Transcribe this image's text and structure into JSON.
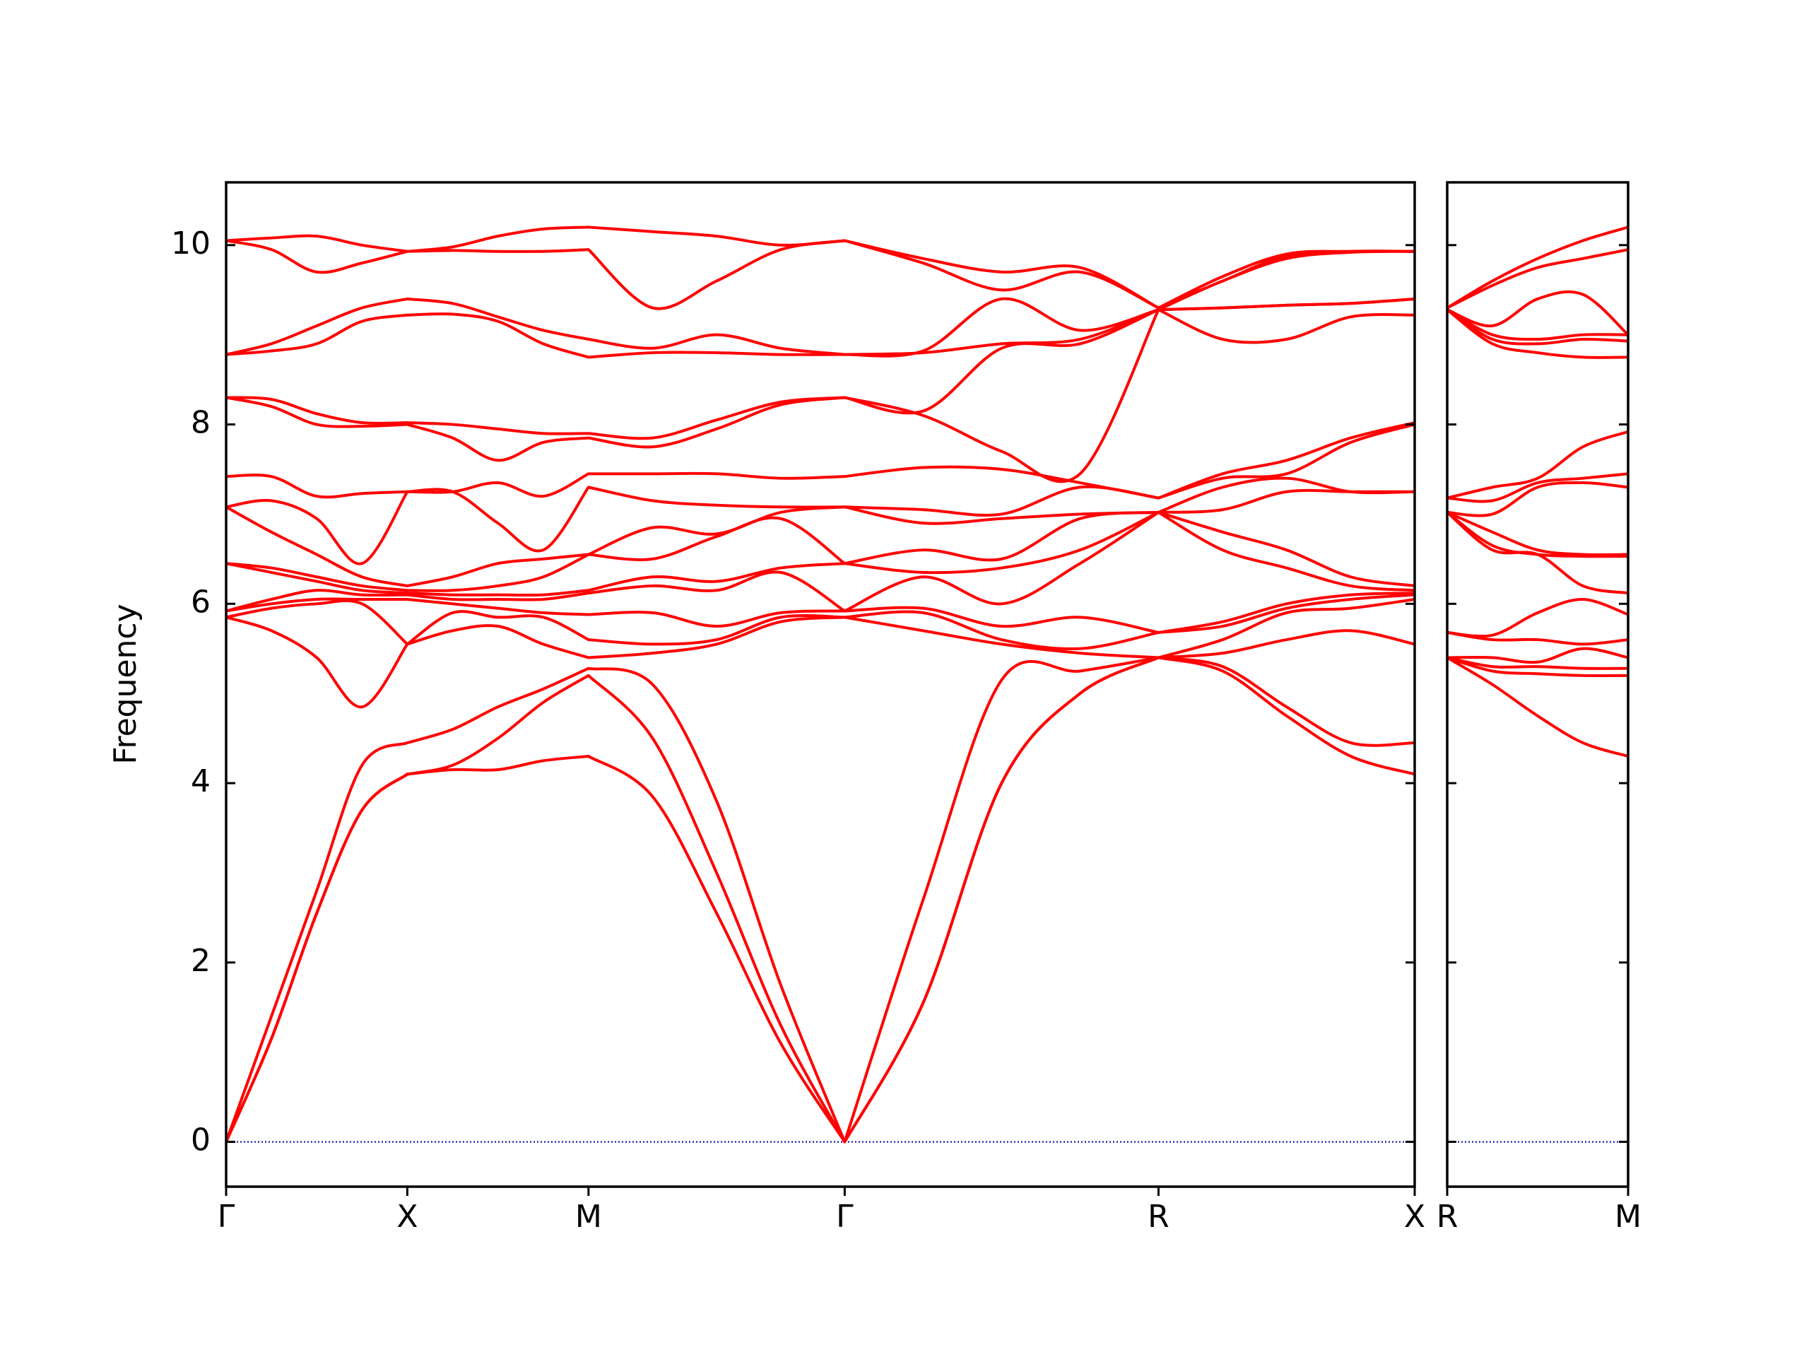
{
  "chart_data": [
    {
      "type": "line",
      "ylabel": "Frequency",
      "color": "#ff0000",
      "hline": 0,
      "hline_color": "#0000aa",
      "x": [
        0,
        0.25,
        0.5,
        0.75,
        1,
        1.25,
        1.5,
        1.75,
        2,
        2.354,
        2.707,
        3.061,
        3.414,
        3.847,
        4.28,
        4.713,
        5.146,
        5.5,
        5.853,
        6.207,
        6.56
      ],
      "xlim": [
        0,
        6.56
      ],
      "xticks": [
        {
          "value": 0,
          "label": "Γ"
        },
        {
          "value": 1,
          "label": "X"
        },
        {
          "value": 2,
          "label": "M"
        },
        {
          "value": 3.414,
          "label": "Γ"
        },
        {
          "value": 5.146,
          "label": "R"
        },
        {
          "value": 6.56,
          "label": "X"
        }
      ],
      "ylim": [
        -0.5,
        10.7
      ],
      "yticks": [
        0,
        2,
        4,
        6,
        8,
        10
      ],
      "show_ytick_labels": true,
      "series": [
        {
          "values": [
            0,
            1.15,
            2.55,
            3.7,
            4.1,
            4.15,
            4.15,
            4.25,
            4.3,
            3.85,
            2.55,
            1.1,
            0,
            1.55,
            4.0,
            5.0,
            5.4,
            5.25,
            4.75,
            4.3,
            4.1
          ]
        },
        {
          "values": [
            0,
            1.15,
            2.55,
            3.7,
            4.1,
            4.2,
            4.5,
            4.9,
            5.2,
            4.5,
            3.0,
            1.3,
            0,
            1.55,
            4.0,
            5.0,
            5.4,
            5.3,
            4.85,
            4.45,
            4.45
          ]
        },
        {
          "values": [
            0,
            1.4,
            2.8,
            4.2,
            4.45,
            4.6,
            4.85,
            5.05,
            5.28,
            5.1,
            3.8,
            1.75,
            0,
            2.7,
            5.15,
            5.25,
            5.4,
            5.45,
            5.6,
            5.7,
            5.55
          ]
        },
        {
          "values": [
            5.85,
            5.7,
            5.4,
            4.85,
            5.55,
            5.7,
            5.75,
            5.55,
            5.4,
            5.45,
            5.55,
            5.8,
            5.85,
            5.7,
            5.55,
            5.45,
            5.4,
            5.6,
            5.9,
            5.95,
            6.05
          ]
        },
        {
          "values": [
            5.85,
            5.95,
            6.0,
            6.0,
            5.55,
            5.9,
            5.85,
            5.85,
            5.6,
            5.55,
            5.6,
            5.85,
            5.85,
            5.9,
            5.6,
            5.5,
            5.68,
            5.75,
            5.95,
            6.05,
            6.1
          ]
        },
        {
          "values": [
            5.92,
            6.0,
            6.05,
            6.05,
            6.05,
            6.0,
            5.95,
            5.9,
            5.88,
            5.9,
            5.75,
            5.9,
            5.92,
            5.95,
            5.75,
            5.85,
            5.68,
            5.8,
            6.0,
            6.1,
            6.12
          ]
        },
        {
          "values": [
            5.92,
            6.05,
            6.15,
            6.1,
            6.1,
            6.05,
            6.05,
            6.05,
            6.12,
            6.2,
            6.15,
            6.35,
            5.92,
            6.3,
            6.0,
            6.45,
            7.02,
            6.6,
            6.4,
            6.2,
            6.15
          ]
        },
        {
          "values": [
            6.45,
            6.35,
            6.25,
            6.15,
            6.12,
            6.1,
            6.1,
            6.1,
            6.15,
            6.3,
            6.25,
            6.4,
            6.45,
            6.35,
            6.4,
            6.6,
            7.02,
            6.8,
            6.6,
            6.3,
            6.2
          ]
        },
        {
          "values": [
            6.45,
            6.4,
            6.3,
            6.2,
            6.15,
            6.15,
            6.2,
            6.3,
            6.55,
            6.5,
            6.75,
            6.95,
            6.45,
            6.6,
            6.5,
            6.95,
            7.02,
            7.05,
            7.25,
            7.25,
            7.25
          ]
        },
        {
          "values": [
            7.08,
            6.8,
            6.55,
            6.3,
            6.2,
            6.3,
            6.45,
            6.5,
            6.55,
            6.85,
            6.78,
            7.02,
            7.08,
            6.9,
            6.95,
            7.0,
            7.02,
            7.3,
            7.4,
            7.25,
            7.25
          ]
        },
        {
          "values": [
            7.08,
            7.15,
            6.95,
            6.45,
            7.25,
            7.25,
            6.9,
            6.6,
            7.3,
            7.15,
            7.1,
            7.08,
            7.08,
            7.05,
            7.0,
            7.3,
            7.18,
            7.4,
            7.45,
            7.8,
            8.0
          ]
        },
        {
          "values": [
            7.42,
            7.42,
            7.2,
            7.23,
            7.25,
            7.25,
            7.35,
            7.2,
            7.45,
            7.45,
            7.45,
            7.4,
            7.42,
            7.52,
            7.5,
            7.35,
            7.18,
            7.45,
            7.6,
            7.85,
            8.02
          ]
        },
        {
          "values": [
            8.3,
            8.2,
            8.0,
            7.98,
            8.0,
            7.85,
            7.6,
            7.8,
            7.85,
            7.75,
            7.95,
            8.22,
            8.3,
            8.1,
            7.7,
            7.45,
            9.28,
            8.95,
            8.95,
            9.2,
            9.22
          ]
        },
        {
          "values": [
            8.3,
            8.28,
            8.12,
            8.02,
            8.02,
            8.0,
            7.95,
            7.9,
            7.9,
            7.85,
            8.05,
            8.25,
            8.3,
            8.15,
            8.85,
            8.9,
            9.28,
            9.3,
            9.33,
            9.35,
            9.4
          ]
        },
        {
          "values": [
            8.78,
            8.82,
            8.9,
            9.15,
            9.22,
            9.23,
            9.15,
            8.9,
            8.75,
            8.8,
            8.8,
            8.78,
            8.78,
            8.8,
            8.9,
            8.95,
            9.28,
            9.3,
            9.33,
            9.35,
            9.4
          ]
        },
        {
          "values": [
            8.78,
            8.9,
            9.1,
            9.3,
            9.4,
            9.35,
            9.2,
            9.05,
            8.95,
            8.85,
            9.0,
            8.85,
            8.78,
            8.82,
            9.4,
            9.05,
            9.28,
            9.6,
            9.85,
            9.92,
            9.93
          ]
        },
        {
          "values": [
            10.05,
            9.95,
            9.7,
            9.8,
            9.93,
            9.94,
            9.93,
            9.93,
            9.95,
            9.3,
            9.6,
            9.95,
            10.05,
            9.8,
            9.5,
            9.7,
            9.3,
            9.6,
            9.88,
            9.93,
            9.93
          ]
        },
        {
          "values": [
            10.05,
            10.08,
            10.1,
            10.0,
            9.93,
            9.98,
            10.1,
            10.18,
            10.2,
            10.15,
            10.1,
            10.0,
            10.05,
            9.85,
            9.7,
            9.75,
            9.3,
            9.65,
            9.9,
            9.93,
            9.93
          ]
        }
      ]
    },
    {
      "type": "line",
      "color": "#ff0000",
      "hline": 0,
      "hline_color": "#0000aa",
      "x": [
        0,
        0.25,
        0.5,
        0.75,
        1
      ],
      "xlim": [
        0,
        1
      ],
      "xticks": [
        {
          "value": 0,
          "label": "R"
        },
        {
          "value": 1,
          "label": "M"
        }
      ],
      "ylim": [
        -0.5,
        10.7
      ],
      "yticks": [
        0,
        2,
        4,
        6,
        8,
        10
      ],
      "show_ytick_labels": false,
      "series": [
        {
          "values": [
            5.4,
            5.1,
            4.75,
            4.45,
            4.3
          ]
        },
        {
          "values": [
            5.4,
            5.25,
            5.22,
            5.2,
            5.2
          ]
        },
        {
          "values": [
            5.4,
            5.3,
            5.3,
            5.28,
            5.28
          ]
        },
        {
          "values": [
            5.4,
            5.4,
            5.35,
            5.5,
            5.4
          ]
        },
        {
          "values": [
            5.68,
            5.6,
            5.6,
            5.55,
            5.6
          ]
        },
        {
          "values": [
            5.68,
            5.65,
            5.9,
            6.05,
            5.88
          ]
        },
        {
          "values": [
            7.02,
            6.6,
            6.55,
            6.2,
            6.12
          ]
        },
        {
          "values": [
            7.02,
            6.65,
            6.55,
            6.53,
            6.53
          ]
        },
        {
          "values": [
            7.02,
            6.8,
            6.6,
            6.55,
            6.55
          ]
        },
        {
          "values": [
            7.02,
            7.0,
            7.3,
            7.35,
            7.3
          ]
        },
        {
          "values": [
            7.18,
            7.15,
            7.35,
            7.4,
            7.45
          ]
        },
        {
          "values": [
            7.18,
            7.3,
            7.4,
            7.75,
            7.92
          ]
        },
        {
          "values": [
            9.28,
            8.9,
            8.8,
            8.75,
            8.75
          ]
        },
        {
          "values": [
            9.28,
            8.95,
            8.9,
            8.95,
            8.93
          ]
        },
        {
          "values": [
            9.28,
            9.0,
            8.95,
            9.0,
            9.0
          ]
        },
        {
          "values": [
            9.28,
            9.1,
            9.4,
            9.45,
            9.0
          ]
        },
        {
          "values": [
            9.3,
            9.55,
            9.75,
            9.85,
            9.95
          ]
        },
        {
          "values": [
            9.3,
            9.6,
            9.85,
            10.05,
            10.2
          ]
        }
      ]
    }
  ]
}
